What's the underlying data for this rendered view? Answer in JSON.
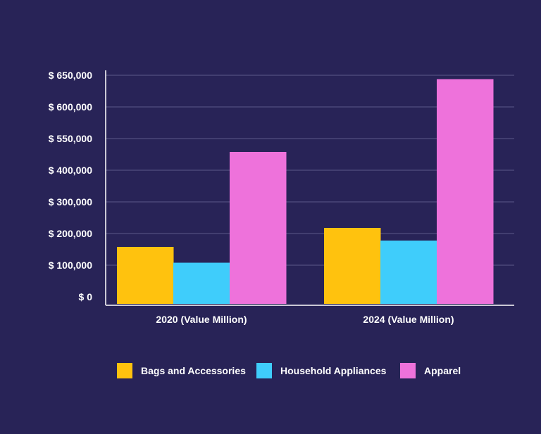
{
  "chart_data": {
    "type": "bar",
    "title": "",
    "xlabel": "",
    "ylabel": "",
    "categories": [
      "2020 (Value Million)",
      "2024 (Value Million)"
    ],
    "y_tick_labels": [
      "$ 0",
      "$ 100,000",
      "$ 200,000",
      "$ 300,000",
      "$ 400,000",
      "$ 550,000",
      "$ 600,000",
      "$ 650,000"
    ],
    "series": [
      {
        "name": "Bags and Accessories",
        "color": "#FFC20E",
        "values": [
          1.8,
          2.4
        ]
      },
      {
        "name": "Household Appliances",
        "color": "#3FCDFB",
        "values": [
          1.3,
          2.0
        ]
      },
      {
        "name": "Apparel",
        "color": "#EE72DB",
        "values": [
          4.8,
          7.1
        ]
      }
    ],
    "value_note": "bar heights expressed in tick-step units (each gridline step = 1)",
    "ylim": [
      0,
      7
    ],
    "grid": true,
    "legend_position": "bottom"
  }
}
